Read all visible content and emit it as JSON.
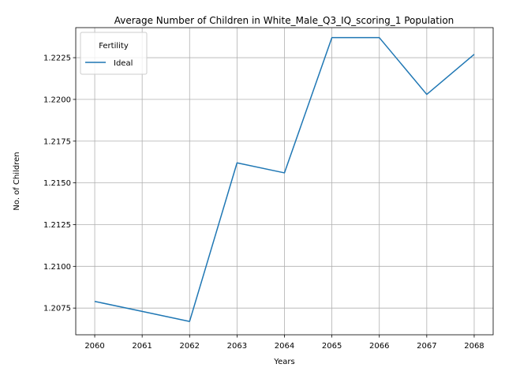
{
  "chart_data": {
    "type": "line",
    "title": "Average Number of Children in White_Male_Q3_IQ_scoring_1 Population",
    "xlabel": "Years",
    "ylabel": "No. of Children",
    "x": [
      2060,
      2061,
      2062,
      2063,
      2064,
      2065,
      2066,
      2067,
      2068
    ],
    "x_tick_labels": [
      "2060",
      "2061",
      "2062",
      "2063",
      "2064",
      "2065",
      "2066",
      "2067",
      "2068"
    ],
    "y_ticks": [
      1.2075,
      1.21,
      1.2125,
      1.215,
      1.2175,
      1.22,
      1.2225
    ],
    "y_tick_labels": [
      "1.2075",
      "1.2100",
      "1.2125",
      "1.2150",
      "1.2175",
      "1.2200",
      "1.2225"
    ],
    "xlim": [
      2059.6,
      2068.4
    ],
    "ylim": [
      1.2059,
      1.2243
    ],
    "grid": true,
    "legend": {
      "title": "Fertility",
      "placement": "upper-left"
    },
    "series": [
      {
        "name": "Ideal",
        "color": "#1f77b4",
        "values": [
          1.2079,
          1.2073,
          1.2067,
          1.2162,
          1.2156,
          1.2237,
          1.2237,
          1.2203,
          1.2227
        ]
      }
    ]
  }
}
